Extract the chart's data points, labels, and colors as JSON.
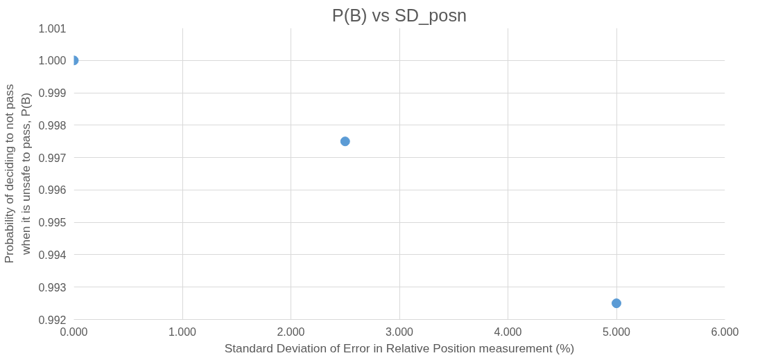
{
  "chart_data": {
    "type": "scatter",
    "title": "P(B) vs SD_posn",
    "xlabel": "Standard Deviation of Error in Relative Position measurement (%)",
    "ylabel": "Probability of deciding to not pass\nwhen it is unsafe to pass, P(B)",
    "x": [
      0,
      2.5,
      5
    ],
    "series": [
      {
        "color": "#5b9bd5",
        "values": [
          1.0,
          0.9975,
          0.9925
        ]
      }
    ],
    "marker": "circle",
    "grid": true,
    "xlim": [
      0,
      6
    ],
    "xticks": [
      {
        "value": 0,
        "label": "0.000"
      },
      {
        "value": 1,
        "label": "1.000"
      },
      {
        "value": 2,
        "label": "2.000"
      },
      {
        "value": 3,
        "label": "3.000"
      },
      {
        "value": 4,
        "label": "4.000"
      },
      {
        "value": 5,
        "label": "5.000"
      },
      {
        "value": 6,
        "label": "6.000"
      }
    ],
    "ylim": [
      0.992,
      1.001
    ],
    "yticks": [
      {
        "value": 0.992,
        "label": "0.992"
      },
      {
        "value": 0.993,
        "label": "0.993"
      },
      {
        "value": 0.994,
        "label": "0.994"
      },
      {
        "value": 0.995,
        "label": "0.995"
      },
      {
        "value": 0.996,
        "label": "0.996"
      },
      {
        "value": 0.997,
        "label": "0.997"
      },
      {
        "value": 0.998,
        "label": "0.998"
      },
      {
        "value": 0.999,
        "label": "0.999"
      },
      {
        "value": 1.0,
        "label": "1.000"
      },
      {
        "value": 1.001,
        "label": "1.001"
      }
    ]
  }
}
